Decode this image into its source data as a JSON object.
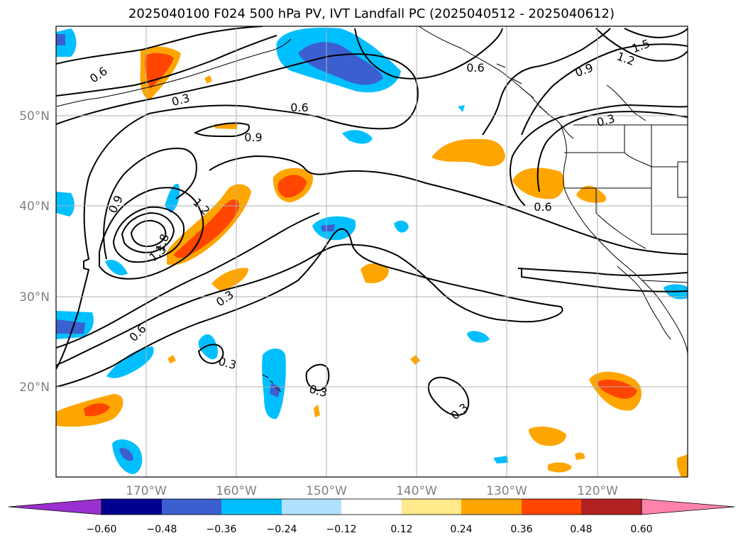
{
  "title": "2025040100 F024 500 hPa PV, IVT Landfall PC (2025040512 - 2025040612)",
  "axes": {
    "lon_labels": [
      "170°W",
      "160°W",
      "150°W",
      "140°W",
      "130°W",
      "120°W"
    ],
    "lat_labels": [
      "50°N",
      "40°N",
      "30°N",
      "20°N"
    ]
  },
  "contour_labels": {
    "l1": "0.6",
    "l2": "0.3",
    "l3": "0.6",
    "l4": "0.9",
    "l5": "0.9",
    "l6": "1.2",
    "l7": "1.8",
    "l8": "1.5",
    "l9": "0.3",
    "l10": "0.6",
    "l11": "0.3",
    "l12": "0.3",
    "l13": "0.3",
    "l14": "0.9",
    "l15": "0.3",
    "l16": "0.6",
    "l17": "1.5",
    "l18": "1.2",
    "l19": "0.6"
  },
  "colorbar": {
    "ticks": [
      "−0.60",
      "−0.48",
      "−0.36",
      "−0.24",
      "−0.12",
      "0.12",
      "0.24",
      "0.36",
      "0.48",
      "0.60"
    ],
    "colors": [
      "#9b30d0",
      "#000090",
      "#3c5fd0",
      "#00bfff",
      "#b0e2ff",
      "#ffffff",
      "#ffe98a",
      "#ffa500",
      "#ff4500",
      "#b22222",
      "#ff82ab"
    ]
  },
  "palette": {
    "neg_light": "#b0e2ff",
    "neg_mid": "#00bfff",
    "neg_strong": "#3c5fd0",
    "pos_light": "#ffe98a",
    "pos_mid": "#ffa500",
    "pos_strong": "#ff4500",
    "pos_max": "#b22222"
  }
}
